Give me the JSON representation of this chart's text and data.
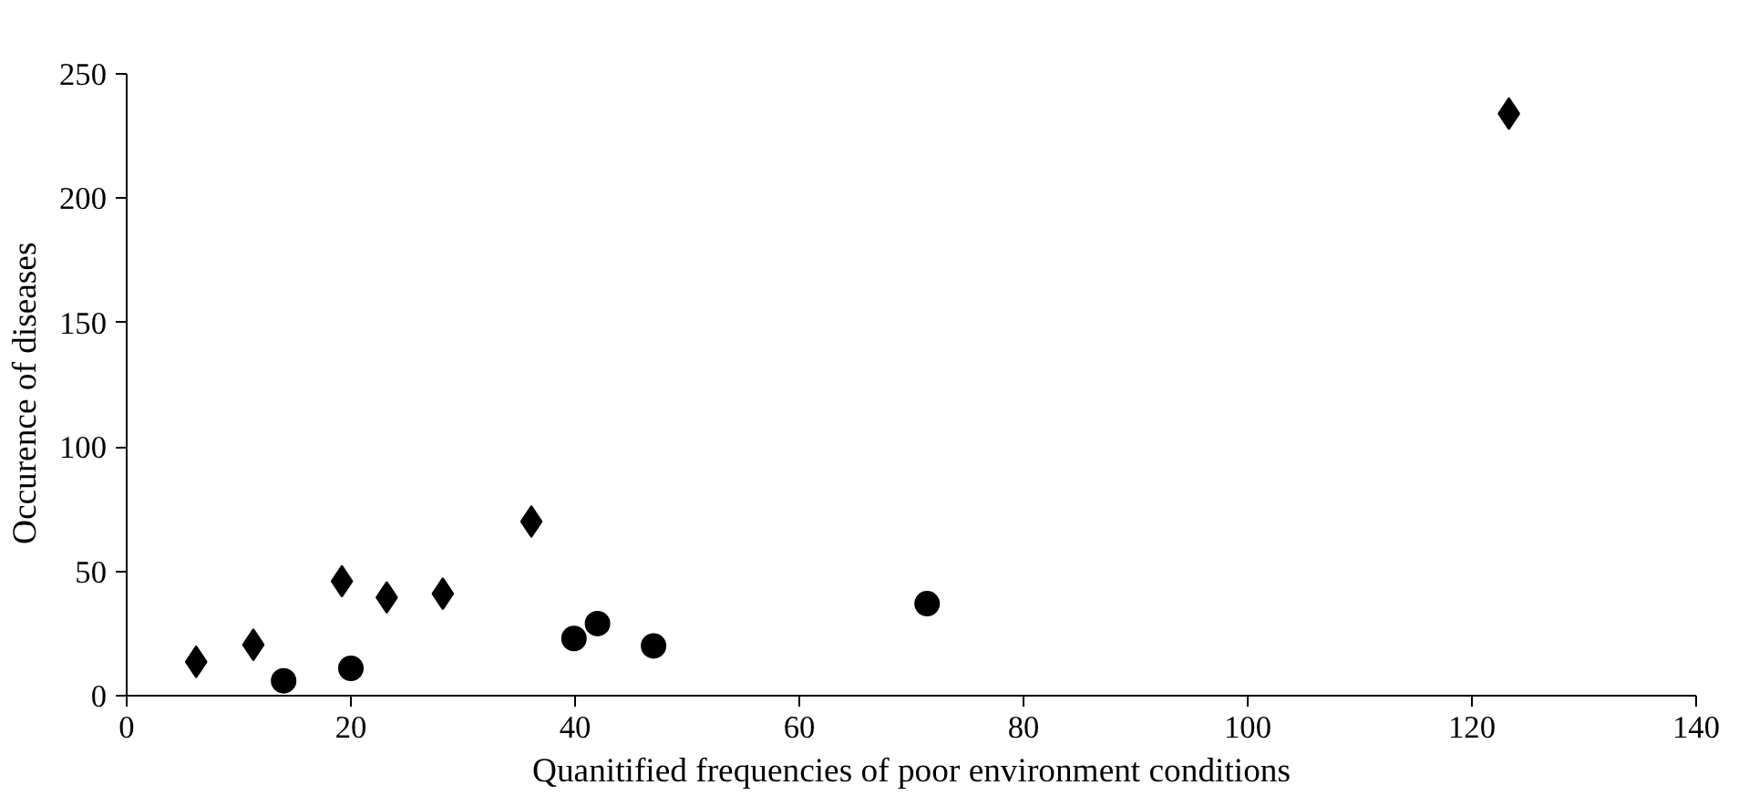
{
  "chart_data": {
    "type": "scatter",
    "xlabel": "Quanitified frequencies of poor environment conditions",
    "ylabel": "Occurence  of  diseases",
    "xlim": [
      0,
      140
    ],
    "xticks": [
      0,
      20,
      40,
      60,
      80,
      100,
      120,
      140
    ],
    "ylim": [
      0,
      250
    ],
    "yticks": [
      0,
      50,
      100,
      150,
      200,
      250
    ],
    "grid": false,
    "series": [
      {
        "color": "#000000",
        "marker": "diamond",
        "x": [
          6.2,
          11.3,
          19.2,
          23.2,
          28.2,
          36.1,
          123.3
        ],
        "values": [
          13.6,
          20.5,
          46,
          39.5,
          41,
          70,
          234
        ]
      },
      {
        "color": "#000000",
        "marker": "circle",
        "x": [
          14.0,
          20.0,
          39.9,
          42,
          47,
          71.4
        ],
        "values": [
          6,
          11,
          23,
          29,
          20,
          37
        ]
      }
    ]
  }
}
